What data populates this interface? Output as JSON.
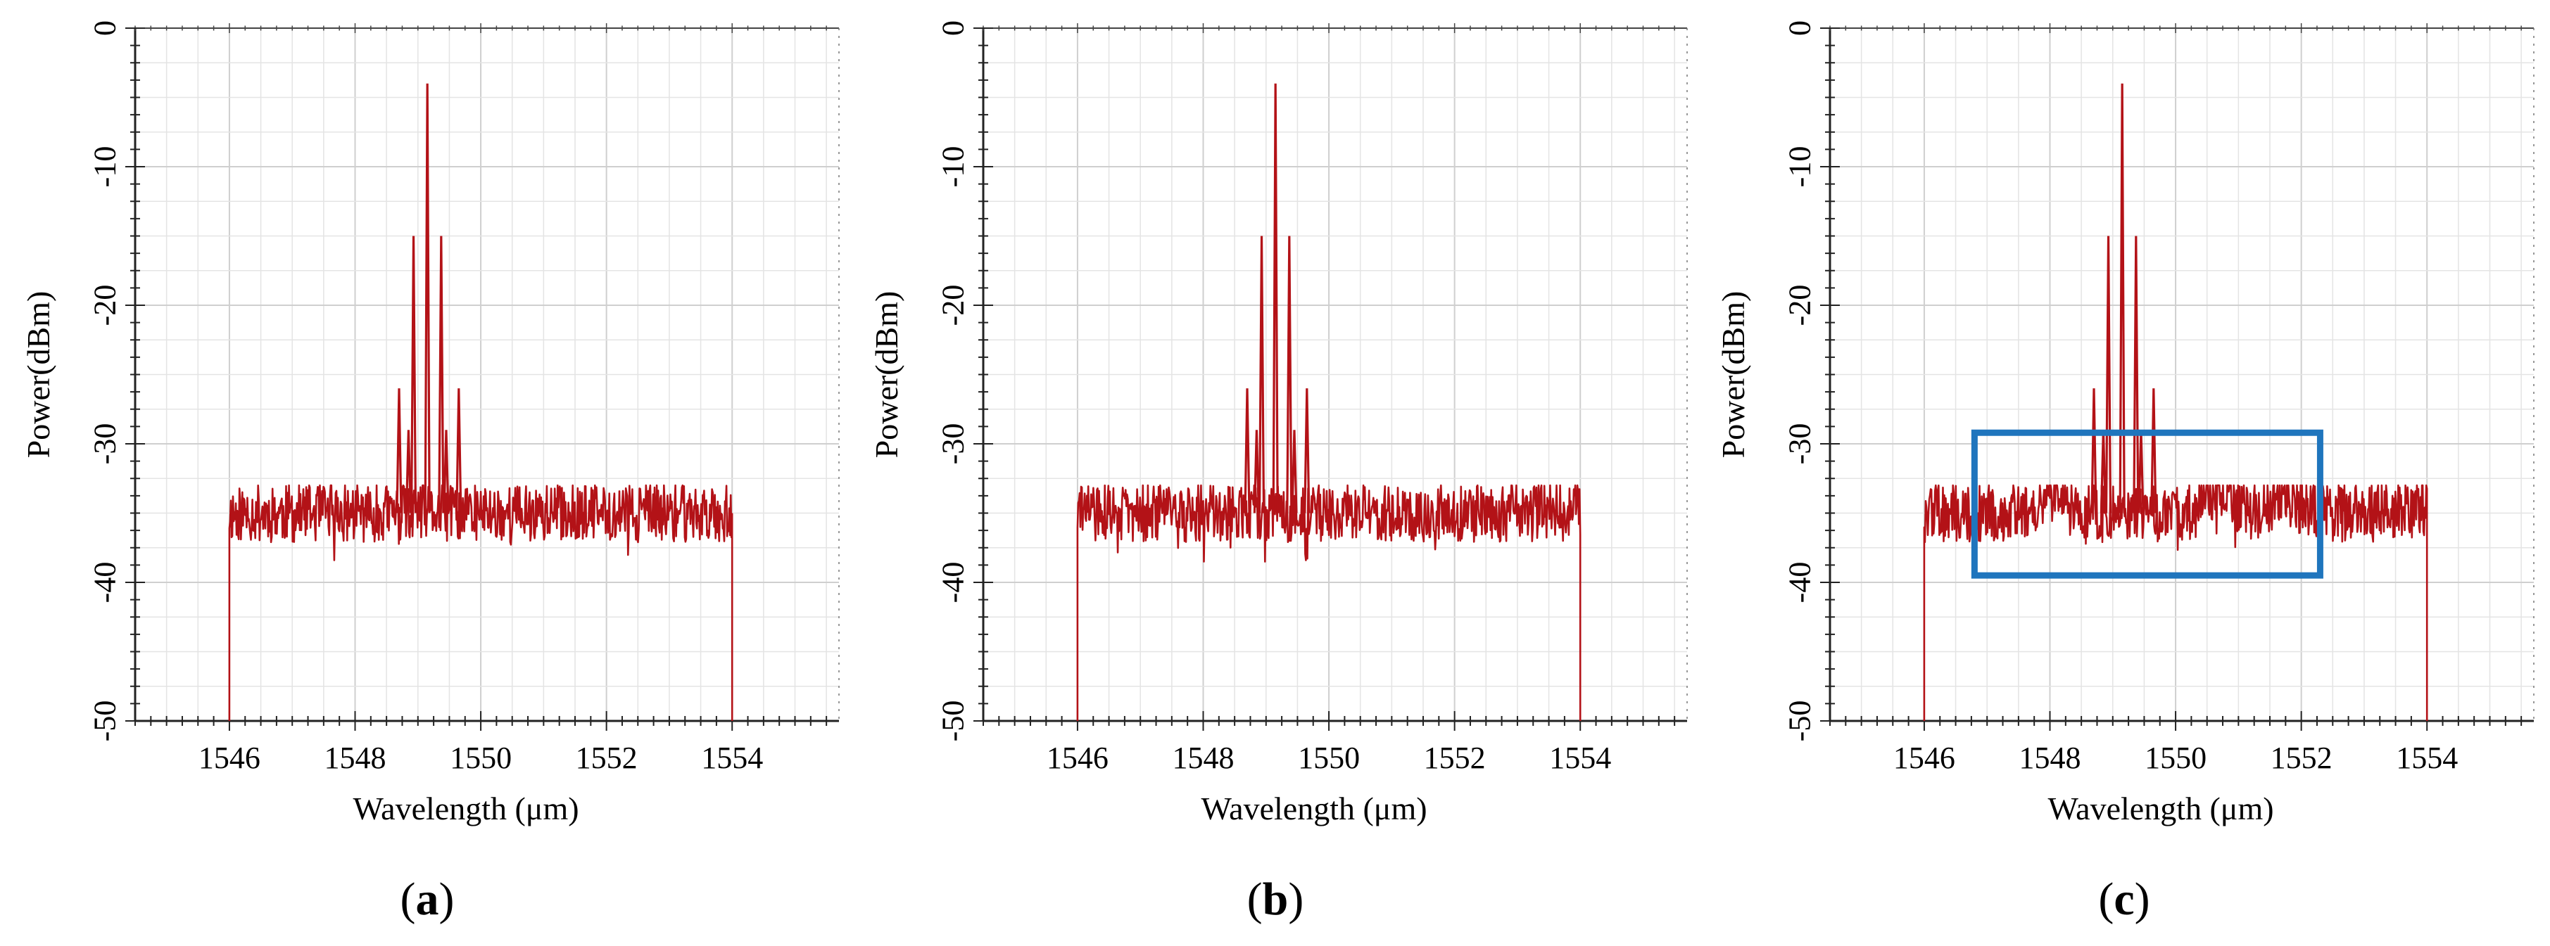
{
  "figure_labels": [
    "(a)",
    "(b)",
    "(c)"
  ],
  "chart_data": [
    {
      "type": "line",
      "panel_label": "(a)",
      "xlabel": "Wavelength (μm)",
      "ylabel": "Power(dBm)",
      "xlim": [
        1544.5,
        1555.7
      ],
      "ylim": [
        -50,
        0
      ],
      "xticks": [
        1546,
        1548,
        1550,
        1552,
        1554
      ],
      "yticks": [
        0,
        -10,
        -20,
        -30,
        -40,
        -50
      ],
      "grid": true,
      "series_color": "#b31217",
      "noise_floor": {
        "x_start": 1546.0,
        "x_end": 1554.0,
        "mean": -35,
        "range": [
          -38.5,
          -33
        ]
      },
      "noise_bumps": [],
      "edge_drop_to": -50,
      "peaks": [
        {
          "x": 1549.15,
          "y": -4
        },
        {
          "x": 1548.93,
          "y": -15
        },
        {
          "x": 1549.37,
          "y": -15
        },
        {
          "x": 1548.7,
          "y": -26
        },
        {
          "x": 1549.65,
          "y": -26
        },
        {
          "x": 1548.85,
          "y": -29
        },
        {
          "x": 1549.45,
          "y": -29
        }
      ]
    },
    {
      "type": "line",
      "panel_label": "(b)",
      "xlabel": "Wavelength (μm)",
      "ylabel": "Power(dBm)",
      "xlim": [
        1544.5,
        1555.7
      ],
      "ylim": [
        -50,
        0
      ],
      "xticks": [
        1546,
        1548,
        1550,
        1552,
        1554
      ],
      "yticks": [
        0,
        -10,
        -20,
        -30,
        -40,
        -50
      ],
      "grid": true,
      "series_color": "#b31217",
      "noise_floor": {
        "x_start": 1546.0,
        "x_end": 1554.0,
        "mean": -35,
        "range": [
          -38.5,
          -33
        ]
      },
      "noise_bumps": [],
      "edge_drop_to": -50,
      "peaks": [
        {
          "x": 1549.15,
          "y": -4
        },
        {
          "x": 1548.93,
          "y": -15
        },
        {
          "x": 1549.37,
          "y": -15
        },
        {
          "x": 1548.7,
          "y": -26
        },
        {
          "x": 1549.65,
          "y": -26
        },
        {
          "x": 1548.85,
          "y": -29
        },
        {
          "x": 1549.45,
          "y": -29
        }
      ]
    },
    {
      "type": "line",
      "panel_label": "(c)",
      "xlabel": "Wavelength (μm)",
      "ylabel": "Power(dBm)",
      "xlim": [
        1544.5,
        1555.7
      ],
      "ylim": [
        -50,
        0
      ],
      "xticks": [
        1546,
        1548,
        1550,
        1552,
        1554
      ],
      "yticks": [
        0,
        -10,
        -20,
        -30,
        -40,
        -50
      ],
      "grid": true,
      "series_color": "#b31217",
      "noise_floor": {
        "x_start": 1546.0,
        "x_end": 1554.0,
        "mean": -35,
        "range": [
          -38.5,
          -33
        ]
      },
      "noise_bumps": [
        {
          "x": 1548.0,
          "height": 1.5,
          "width": 0.3
        },
        {
          "x": 1550.7,
          "height": 1.8,
          "width": 0.3
        },
        {
          "x": 1551.7,
          "height": 1.2,
          "width": 0.3
        }
      ],
      "edge_drop_to": -50,
      "peaks": [
        {
          "x": 1549.15,
          "y": -4
        },
        {
          "x": 1548.93,
          "y": -15
        },
        {
          "x": 1549.37,
          "y": -15
        },
        {
          "x": 1548.7,
          "y": -26
        },
        {
          "x": 1549.65,
          "y": -26
        },
        {
          "x": 1548.85,
          "y": -29
        },
        {
          "x": 1549.45,
          "y": -29
        }
      ],
      "highlight_box": {
        "x_range": [
          1546.8,
          1552.3
        ],
        "y_range": [
          -39.5,
          -29.2
        ],
        "color": "#1f75bd"
      }
    }
  ]
}
